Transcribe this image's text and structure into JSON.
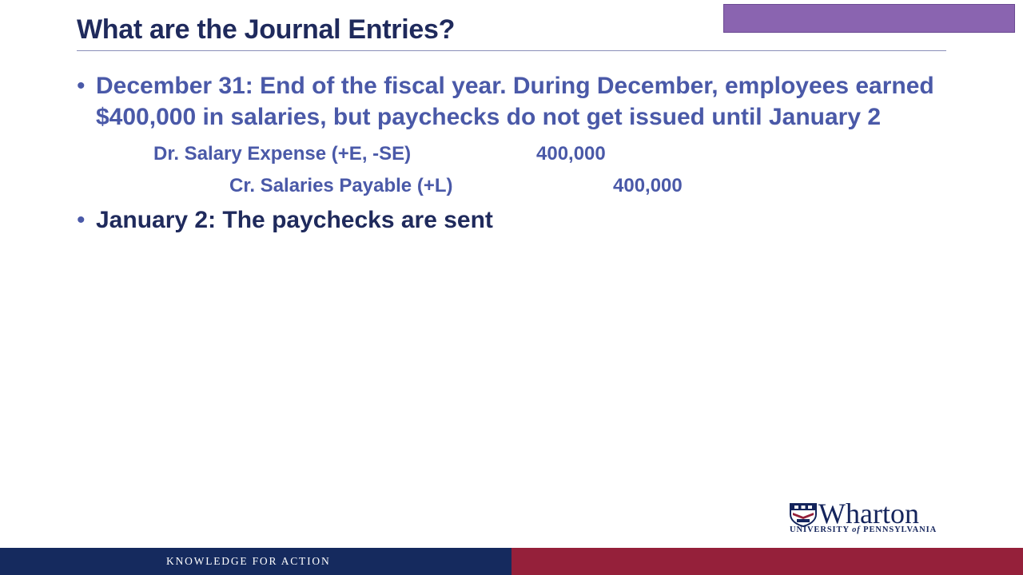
{
  "slide": {
    "title": "What are the Journal Entries?"
  },
  "bullets": {
    "dot": "•",
    "first": "December 31: End of the fiscal year.  During December, employees earned $400,000 in salaries, but paychecks do not get issued until January 2",
    "second": "January 2: The paychecks are sent"
  },
  "journal_entry": {
    "debit_line": "Dr.  Salary Expense (+E, -SE)",
    "debit_amount": "400,000",
    "credit_line": "Cr.  Salaries Payable (+L)",
    "credit_amount": "400,000"
  },
  "logo": {
    "name": "Wharton",
    "subtitle_prefix": "UNIVERSITY ",
    "subtitle_of": "of",
    "subtitle_suffix": " PENNSYLVANIA"
  },
  "footer": {
    "tagline": "KNOWLEDGE FOR ACTION"
  },
  "colors": {
    "title": "#1f2a5c",
    "accent": "#4a59a8",
    "footer_navy": "#152a5e",
    "footer_red": "#95203a"
  }
}
